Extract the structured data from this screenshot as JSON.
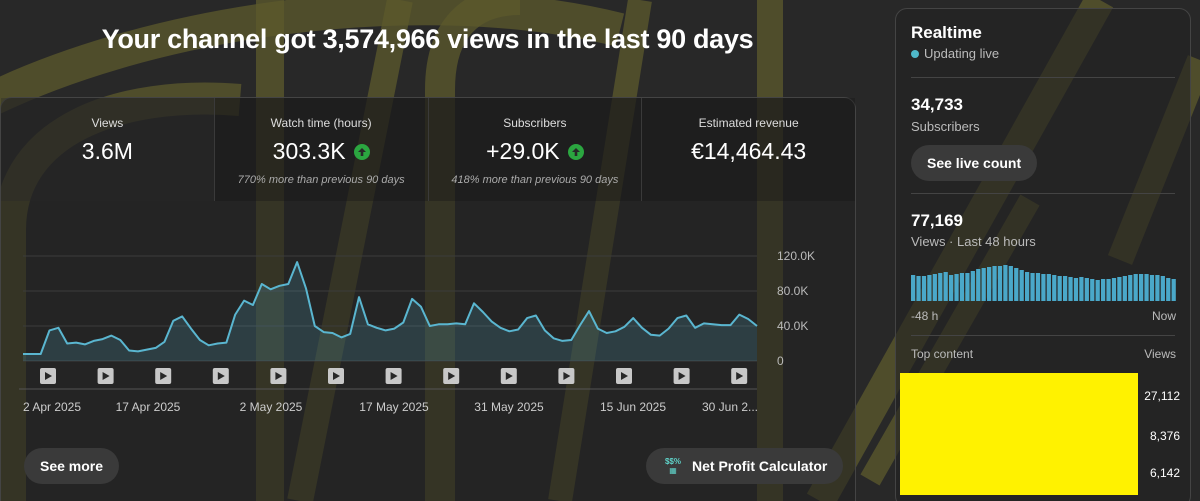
{
  "headline": "Your channel got 3,574,966 views in the last 90 days",
  "metrics": [
    {
      "label": "Views",
      "value": "3.6M",
      "note": "",
      "trend": ""
    },
    {
      "label": "Watch time (hours)",
      "value": "303.3K",
      "note": "770% more than previous 90 days",
      "trend": "up"
    },
    {
      "label": "Subscribers",
      "value": "+29.0K",
      "note": "418% more than previous 90 days",
      "trend": "up"
    },
    {
      "label": "Estimated revenue",
      "value": "€14,464.43",
      "note": "",
      "trend": ""
    }
  ],
  "icons": {
    "trend": "arrow-up-icon",
    "video_marker": "play-icon",
    "live": "live-dot-icon",
    "calculator": "net-profit-calculator-icon"
  },
  "colors": {
    "line": "#5ab6d0",
    "trend_up": "#2ba640",
    "bars": "#4aa8c9",
    "accent": "#4fb8c9"
  },
  "chart_data": {
    "type": "area",
    "x_tick_labels": [
      "2 Apr 2025",
      "17 Apr 2025",
      "2 May 2025",
      "17 May 2025",
      "31 May 2025",
      "15 Jun 2025",
      "30 Jun 2..."
    ],
    "y_tick_labels": [
      "120.0K",
      "80.0K",
      "40.0K",
      "0"
    ],
    "ylim": [
      0,
      120000
    ],
    "x_range": [
      "2 Apr 2025",
      "1 Jul 2025"
    ],
    "video_markers": 13,
    "series": [
      {
        "values": [
          8000,
          8000,
          8000,
          35000,
          38000,
          20000,
          21000,
          19000,
          23000,
          25000,
          29000,
          24000,
          12000,
          11000,
          13000,
          15000,
          22000,
          46000,
          51000,
          37000,
          24000,
          18000,
          20000,
          21000,
          53000,
          69000,
          64000,
          88000,
          82000,
          86000,
          88000,
          113000,
          83000,
          40000,
          33000,
          32000,
          27000,
          31000,
          73000,
          42000,
          38000,
          35000,
          37000,
          44000,
          71000,
          62000,
          40000,
          42000,
          42000,
          43000,
          42000,
          66000,
          56000,
          45000,
          38000,
          34000,
          36000,
          49000,
          52000,
          35000,
          26000,
          23000,
          24000,
          41000,
          57000,
          37000,
          32000,
          34000,
          39000,
          49000,
          38000,
          30000,
          29000,
          37000,
          49000,
          52000,
          38000,
          43000,
          42000,
          41000,
          41000,
          53000,
          48000,
          40000
        ]
      }
    ]
  },
  "buttons": {
    "see_more": "See more",
    "net_profit": "Net Profit Calculator"
  },
  "realtime": {
    "title": "Realtime",
    "status": "Updating live",
    "subscribers": "34,733",
    "subscribers_label": "Subscribers",
    "live_count_button": "See live count",
    "views": "77,169",
    "views_label": "Views · Last 48 hours",
    "axis_left": "-48 h",
    "axis_right": "Now",
    "top_content_label": "Top content",
    "top_views_label": "Views",
    "bars": [
      26,
      25,
      25,
      26,
      27,
      28,
      29,
      26,
      27,
      28,
      28,
      30,
      32,
      33,
      34,
      35,
      35,
      36,
      35,
      33,
      31,
      29,
      28,
      28,
      27,
      27,
      26,
      25,
      25,
      24,
      23,
      24,
      23,
      22,
      21,
      22,
      22,
      23,
      24,
      25,
      26,
      27,
      27,
      27,
      26,
      26,
      25,
      23,
      22
    ],
    "top_content": [
      "27,112",
      "8,376",
      "6,142"
    ]
  }
}
